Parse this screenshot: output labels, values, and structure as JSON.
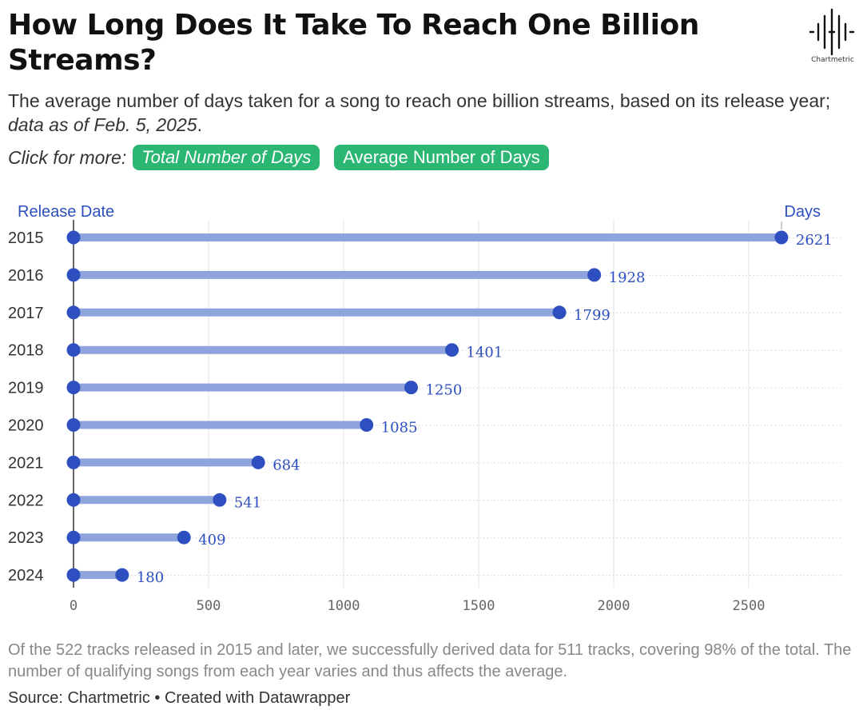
{
  "header": {
    "title": "How Long Does It Take To Reach One Billion Streams?",
    "subtitle_main": "The average number of days taken for a song to reach one billion streams, based on its release year; ",
    "subtitle_italic": "data as of Feb. 5, 2025",
    "subtitle_end": "."
  },
  "more": {
    "label": "Click for more:",
    "buttons": [
      "Total Number of Days",
      "Average Number of Days"
    ],
    "button_color": "#2bb673"
  },
  "logo": {
    "icon": "chartmetric-waveform-logo-icon",
    "text": "Chartmetric"
  },
  "chart_data": {
    "type": "dot-plot",
    "y_header": "Release Date",
    "x_header": "Days",
    "categories": [
      "2015",
      "2016",
      "2017",
      "2018",
      "2019",
      "2020",
      "2021",
      "2022",
      "2023",
      "2024"
    ],
    "values": [
      2621,
      1928,
      1799,
      1401,
      1250,
      1085,
      684,
      541,
      409,
      180
    ],
    "xlim": [
      0,
      2700
    ],
    "xticks": [
      "0",
      "500",
      "1000",
      "1500",
      "2000",
      "2500"
    ],
    "grid": true,
    "colors": {
      "dot": "#2e4fbf",
      "bar": "#8fa4dc",
      "label": "#2e4fbf",
      "header": "#2e4fbf"
    }
  },
  "footer": {
    "note": "Of the 522 tracks released in 2015 and later, we successfully derived data for 511 tracks, covering 98% of the total. The number of qualifying songs from each year varies and thus affects the average.",
    "source": "Source: Chartmetric • Created with Datawrapper"
  }
}
